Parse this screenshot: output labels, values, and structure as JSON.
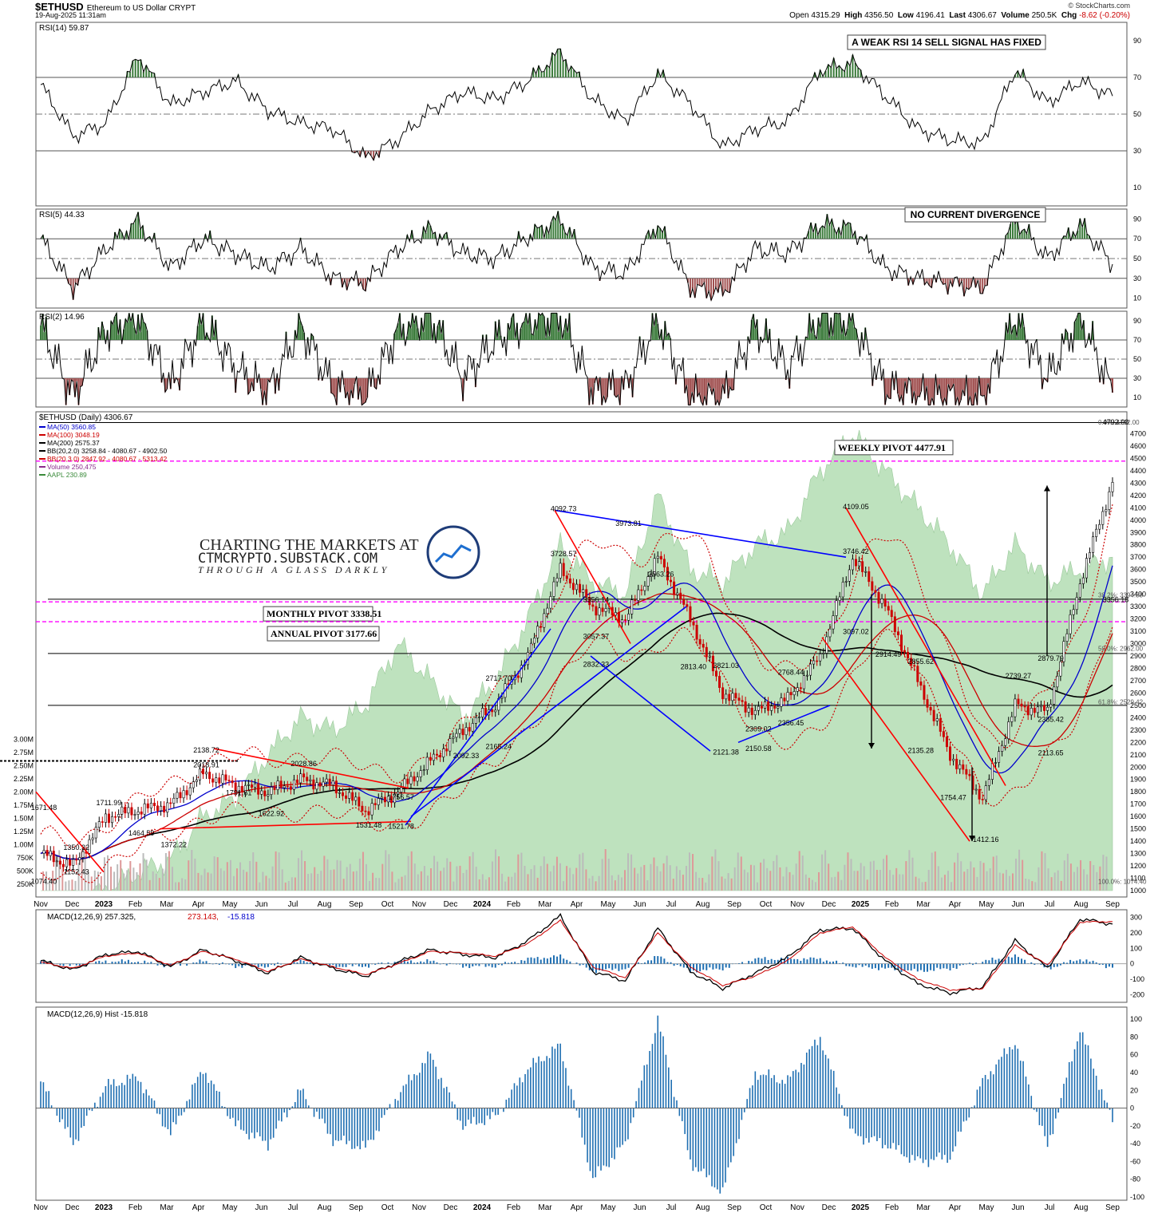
{
  "header": {
    "symbol": "$ETHUSD",
    "description": "Ethereum to US Dollar",
    "exchange": "CRYPT",
    "timestamp": "19-Aug-2025 11:31am",
    "open_label": "Open",
    "open": "4315.29",
    "high_label": "High",
    "high": "4356.50",
    "low_label": "Low",
    "low": "4196.41",
    "last_label": "Last",
    "last": "4306.67",
    "volume_label": "Volume",
    "volume": "250.5K",
    "chg_label": "Chg",
    "chg": "-8.62 (-0.20%)",
    "brand": "© StockCharts.com"
  },
  "watermark": {
    "line1": "CHARTING THE MARKETS AT",
    "line2": "CTMCRYPTO.SUBSTACK.COM",
    "line3": "THROUGH A GLASS DARKLY"
  },
  "colors": {
    "rsi_ob": "#3a7a3a",
    "rsi_os": "#a05050",
    "volume": "#a8d8a8",
    "candle_up": "#000000",
    "candle_down": "#cc0000",
    "ma50": "#0000cc",
    "ma100": "#cc0000",
    "ma200": "#000000",
    "pivot": "#ff00ff",
    "macd_hist": "#1f6fb2"
  },
  "chart_data": [
    {
      "type": "line",
      "indicator": "RSI(14)",
      "legend": "RSI(14) 59.87",
      "ylim": [
        0,
        100
      ],
      "y_ticks": [
        10,
        30,
        50,
        70,
        90
      ],
      "annotation": "A WEAK RSI 14 SELL SIGNAL HAS FIXED",
      "x": [
        "2022-11",
        "2022-12",
        "2023-01",
        "2023-02",
        "2023-03",
        "2023-04",
        "2023-05",
        "2023-06",
        "2023-07",
        "2023-08",
        "2023-09",
        "2023-10",
        "2023-11",
        "2023-12",
        "2024-01",
        "2024-02",
        "2024-03",
        "2024-04",
        "2024-05",
        "2024-06",
        "2024-07",
        "2024-08",
        "2024-09",
        "2024-10",
        "2024-11",
        "2024-12",
        "2025-01",
        "2025-02",
        "2025-03",
        "2025-04",
        "2025-05",
        "2025-06",
        "2025-07",
        "2025-08"
      ],
      "values": [
        66,
        38,
        45,
        82,
        55,
        62,
        68,
        52,
        45,
        42,
        26,
        36,
        52,
        62,
        58,
        68,
        84,
        58,
        46,
        72,
        56,
        32,
        42,
        46,
        74,
        78,
        60,
        42,
        36,
        34,
        74,
        56,
        68,
        59.87
      ]
    },
    {
      "type": "line",
      "indicator": "RSI(5)",
      "legend": "RSI(5) 44.33",
      "ylim": [
        0,
        100
      ],
      "y_ticks": [
        10,
        30,
        50,
        70,
        90
      ],
      "annotation": "NO CURRENT DIVERGENCE",
      "values": [
        70,
        20,
        60,
        88,
        40,
        70,
        55,
        40,
        60,
        30,
        25,
        60,
        80,
        55,
        50,
        72,
        90,
        40,
        35,
        85,
        20,
        15,
        60,
        55,
        85,
        80,
        40,
        30,
        25,
        20,
        90,
        50,
        85,
        44.33
      ]
    },
    {
      "type": "line",
      "indicator": "RSI(2)",
      "legend": "RSI(2) 14.96",
      "ylim": [
        0,
        100
      ],
      "y_ticks": [
        10,
        30,
        50,
        70,
        90
      ],
      "values": [
        85,
        10,
        80,
        95,
        20,
        90,
        40,
        15,
        85,
        20,
        10,
        80,
        95,
        30,
        70,
        90,
        95,
        15,
        20,
        92,
        10,
        8,
        85,
        40,
        95,
        90,
        20,
        12,
        10,
        8,
        95,
        30,
        95,
        14.96
      ]
    },
    {
      "type": "line",
      "title": "$ETHUSD (Daily) 4306.67",
      "legend": [
        "MA(50) 3560.85",
        "MA(100) 3048.19",
        "MA(200) 2575.37",
        "BB(20,2.0) 3258.84 - 4080.67 - 4902.50",
        "BB(20,3.0) 2847.92 - 4080.67 - 5313.42",
        "Volume 250,475",
        "AAPL 230.89"
      ],
      "ylim": [
        1000,
        4800
      ],
      "y_ticks": [
        1000,
        1100,
        1200,
        1300,
        1400,
        1500,
        1600,
        1700,
        1800,
        1900,
        2000,
        2100,
        2200,
        2300,
        2400,
        2500,
        2600,
        2700,
        2800,
        2900,
        3000,
        3100,
        3200,
        3300,
        3400,
        3500,
        3600,
        3700,
        3800,
        3900,
        4000,
        4100,
        4200,
        4300,
        4400,
        4500,
        4600,
        4700
      ],
      "volume_ticks": [
        "250K",
        "500K",
        "750K",
        "1.00M",
        "1.25M",
        "1.50M",
        "1.75M",
        "2.00M",
        "2.25M",
        "2.50M",
        "2.75M",
        "3.00M"
      ],
      "x_labels": [
        "Nov",
        "Dec",
        "2023",
        "Feb",
        "Mar",
        "Apr",
        "May",
        "Jun",
        "Jul",
        "Aug",
        "Sep",
        "Oct",
        "Nov",
        "Dec",
        "2024",
        "Feb",
        "Mar",
        "Apr",
        "May",
        "Jun",
        "Jul",
        "Aug",
        "Sep",
        "Oct",
        "Nov",
        "Dec",
        "2025",
        "Feb",
        "Mar",
        "Apr",
        "May",
        "Jun",
        "Jul",
        "Aug",
        "Sep"
      ],
      "close": [
        1300,
        1200,
        1600,
        1650,
        1700,
        1950,
        1850,
        1800,
        1900,
        1850,
        1650,
        1800,
        2050,
        2300,
        2500,
        2900,
        3600,
        3300,
        3200,
        3700,
        3200,
        2600,
        2450,
        2550,
        2900,
        3700,
        3300,
        2700,
        2100,
        1750,
        2500,
        2450,
        3500,
        4306.67
      ],
      "pivots": [
        {
          "label": "WEEKLY PIVOT 4477.91",
          "value": 4477.91
        },
        {
          "label": "MONTHLY PIVOT 3338.51",
          "value": 3338.51
        },
        {
          "label": "ANNUAL PIVOT 3177.66",
          "value": 3177.66
        }
      ],
      "fib_levels": [
        {
          "label": "0.0%: 4792.00",
          "value": 4792
        },
        {
          "label": "38.2%: 3394.58",
          "value": 3394.58
        },
        {
          "label": "50.0%: 2962.00",
          "value": 2962
        },
        {
          "label": "61.8%: 2529.42",
          "value": 2529.42
        },
        {
          "label": "100.0%: 1074.40",
          "value": 1074.4
        }
      ],
      "price_labels": [
        {
          "x": "2022-11",
          "value": 1671.48,
          "label": "1671.48"
        },
        {
          "x": "2022-11",
          "value": 1074.4,
          "label": "1074.40"
        },
        {
          "x": "2022-12",
          "value": 1350.32,
          "label": "1350.32"
        },
        {
          "x": "2022-12",
          "value": 1152.43,
          "label": "1152.43"
        },
        {
          "x": "2023-01",
          "value": 1711.99,
          "label": "1711.99"
        },
        {
          "x": "2023-02",
          "value": 1464.59,
          "label": "1464.59"
        },
        {
          "x": "2023-03",
          "value": 1372.22,
          "label": "1372.22"
        },
        {
          "x": "2023-04",
          "value": 2138.72,
          "label": "2138.72"
        },
        {
          "x": "2023-04",
          "value": 2018.91,
          "label": "2018.91"
        },
        {
          "x": "2023-05",
          "value": 1791.61,
          "label": "1791.61"
        },
        {
          "x": "2023-07",
          "value": 2028.86,
          "label": "2028.86"
        },
        {
          "x": "2023-06",
          "value": 1622.92,
          "label": "1622.92"
        },
        {
          "x": "2023-09",
          "value": 1531.48,
          "label": "1531.48"
        },
        {
          "x": "2023-10",
          "value": 1756.57,
          "label": "1756.57"
        },
        {
          "x": "2023-10",
          "value": 1521.78,
          "label": "1521.78"
        },
        {
          "x": "2023-12",
          "value": 2092.33,
          "label": "2092.33"
        },
        {
          "x": "2024-01",
          "value": 2165.24,
          "label": "2165.24"
        },
        {
          "x": "2024-01",
          "value": 2717.7,
          "label": "2717.70"
        },
        {
          "x": "2024-03",
          "value": 4092.73,
          "label": "4092.73"
        },
        {
          "x": "2024-03",
          "value": 3728.57,
          "label": "3728.57"
        },
        {
          "x": "2024-04",
          "value": 3356.14,
          "label": "3356.14"
        },
        {
          "x": "2024-04",
          "value": 3057.37,
          "label": "3057.37"
        },
        {
          "x": "2024-04",
          "value": 2832.33,
          "label": "2832.33"
        },
        {
          "x": "2024-05",
          "value": 3973.81,
          "label": "3973.81"
        },
        {
          "x": "2024-06",
          "value": 3563.26,
          "label": "3563.26"
        },
        {
          "x": "2024-07",
          "value": 2813.4,
          "label": "2813.40"
        },
        {
          "x": "2024-08",
          "value": 2121.38,
          "label": "2121.38"
        },
        {
          "x": "2024-08",
          "value": 2821.03,
          "label": "2821.03"
        },
        {
          "x": "2024-09",
          "value": 2150.58,
          "label": "2150.58"
        },
        {
          "x": "2024-09",
          "value": 2309.02,
          "label": "2309.02"
        },
        {
          "x": "2024-10",
          "value": 2768.44,
          "label": "2768.44"
        },
        {
          "x": "2024-10",
          "value": 2356.45,
          "label": "2356.45"
        },
        {
          "x": "2024-12",
          "value": 4109.05,
          "label": "4109.05"
        },
        {
          "x": "2024-12",
          "value": 3746.42,
          "label": "3746.42"
        },
        {
          "x": "2024-12",
          "value": 3097.02,
          "label": "3097.02"
        },
        {
          "x": "2025-01",
          "value": 2914.49,
          "label": "2914.49"
        },
        {
          "x": "2025-02",
          "value": 2855.62,
          "label": "2855.62"
        },
        {
          "x": "2025-02",
          "value": 2135.28,
          "label": "2135.28"
        },
        {
          "x": "2025-03",
          "value": 1754.47,
          "label": "1754.47"
        },
        {
          "x": "2025-04",
          "value": 1412.16,
          "label": "1412.16"
        },
        {
          "x": "2025-05",
          "value": 2739.27,
          "label": "2739.27"
        },
        {
          "x": "2025-06",
          "value": 2879.79,
          "label": "2879.79"
        },
        {
          "x": "2025-06",
          "value": 2385.42,
          "label": "2385.42"
        },
        {
          "x": "2025-06",
          "value": 2113.65,
          "label": "2113.65"
        },
        {
          "x": "2025-08",
          "value": 3356.18,
          "label": "3356.18"
        },
        {
          "x": "2025-08",
          "value": 4792.0,
          "label": "4792.00"
        }
      ]
    },
    {
      "type": "line",
      "indicator": "MACD(12,26,9)",
      "legend_main": "MACD(12,26,9) 257.325,",
      "legend_signal": "273.143,",
      "legend_hist": "-15.818",
      "ylim": [
        -250,
        350
      ],
      "y_ticks": [
        -200,
        -100,
        0,
        100,
        200,
        300
      ],
      "macd": [
        20,
        -40,
        60,
        80,
        -20,
        90,
        20,
        -60,
        40,
        -30,
        -80,
        10,
        90,
        60,
        40,
        150,
        310,
        -50,
        -110,
        230,
        -50,
        -160,
        -60,
        40,
        220,
        230,
        20,
        -130,
        -190,
        -150,
        150,
        -30,
        290,
        257.325
      ],
      "signal": [
        10,
        -30,
        50,
        70,
        -10,
        80,
        30,
        -50,
        30,
        -20,
        -70,
        0,
        80,
        70,
        50,
        130,
        280,
        -20,
        -90,
        200,
        -20,
        -140,
        -80,
        20,
        200,
        240,
        40,
        -100,
        -170,
        -160,
        120,
        -10,
        270,
        273.143
      ]
    },
    {
      "type": "bar",
      "indicator": "MACD Histogram",
      "legend": "MACD(12,26,9) Hist -15.818",
      "ylim": [
        -100,
        110
      ],
      "y_ticks": [
        -100,
        -80,
        -60,
        -40,
        -20,
        0,
        20,
        40,
        60,
        80,
        100
      ],
      "values": [
        30,
        -40,
        25,
        35,
        -30,
        45,
        -20,
        -40,
        20,
        -35,
        -45,
        15,
        60,
        -20,
        -10,
        45,
        70,
        -80,
        -40,
        100,
        -60,
        -95,
        40,
        30,
        80,
        -30,
        -40,
        -60,
        -55,
        30,
        75,
        -45,
        90,
        -15.818
      ]
    }
  ]
}
